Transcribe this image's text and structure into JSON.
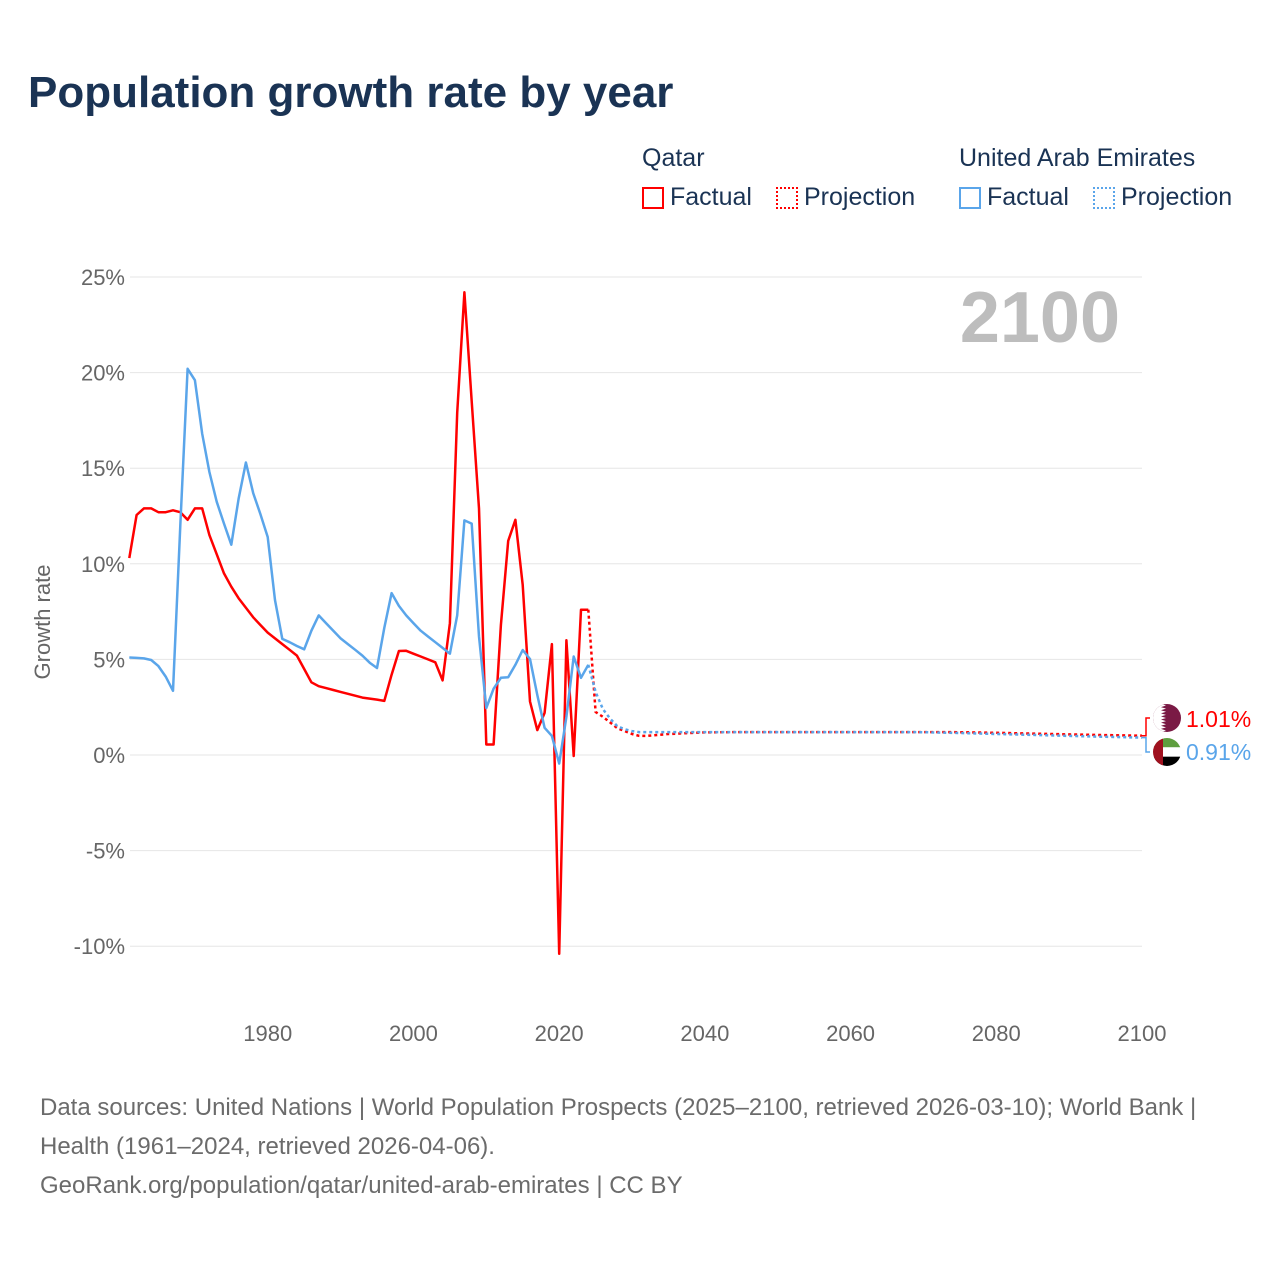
{
  "title": "Population growth rate by year",
  "legend": {
    "groups": [
      {
        "name": "Qatar",
        "factual": "Factual",
        "projection": "Projection",
        "color": "#ff0000"
      },
      {
        "name": "United Arab Emirates",
        "factual": "Factual",
        "projection": "Projection",
        "color": "#5aa5ea"
      }
    ]
  },
  "year_watermark": "2100",
  "footer": {
    "sources": "Data sources: United Nations | World Population Prospects (2025–2100, retrieved 2026-03-10); World Bank | Health (1961–2024, retrieved 2026-04-06).",
    "credit": "GeoRank.org/population/qatar/united-arab-emirates | CC BY"
  },
  "chart_data": {
    "type": "line",
    "title": "Population growth rate by year",
    "xlabel": "",
    "ylabel": "Growth rate",
    "xlim": [
      1961,
      2100
    ],
    "ylim": [
      -10.5,
      25
    ],
    "x_ticks": [
      1980,
      2000,
      2020,
      2040,
      2060,
      2080,
      2100
    ],
    "y_ticks": [
      25,
      20,
      15,
      10,
      5,
      0,
      -5,
      -10
    ],
    "y_tick_labels": [
      "25%",
      "20%",
      "15%",
      "10%",
      "5%",
      "0%",
      "-5%",
      "-10%"
    ],
    "x_tick_labels": [
      "1980",
      "2000",
      "2020",
      "2040",
      "2060",
      "2080",
      "2100"
    ],
    "grid": true,
    "legend_position": "top-right",
    "series": [
      {
        "name": "Qatar",
        "kind": "factual",
        "color": "#ff0000",
        "x": [
          1961,
          1962,
          1963,
          1964,
          1965,
          1966,
          1967,
          1968,
          1969,
          1970,
          1971,
          1972,
          1973,
          1974,
          1975,
          1976,
          1977,
          1978,
          1979,
          1980,
          1981,
          1982,
          1983,
          1984,
          1985,
          1986,
          1987,
          1988,
          1989,
          1990,
          1991,
          1992,
          1993,
          1994,
          1995,
          1996,
          1997,
          1998,
          1999,
          2000,
          2001,
          2002,
          2003,
          2004,
          2005,
          2006,
          2007,
          2008,
          2009,
          2010,
          2011,
          2012,
          2013,
          2014,
          2015,
          2016,
          2017,
          2018,
          2019,
          2020,
          2021,
          2022,
          2023,
          2024
        ],
        "y": [
          10.3,
          12.55,
          12.9,
          12.9,
          12.7,
          12.7,
          12.8,
          12.7,
          12.3,
          12.9,
          12.9,
          11.5,
          10.5,
          9.5,
          8.8,
          8.2,
          7.7,
          7.2,
          6.8,
          6.4,
          6.1,
          5.8,
          5.5,
          5.2,
          4.5,
          3.8,
          3.6,
          3.5,
          3.4,
          3.3,
          3.2,
          3.1,
          3.0,
          2.95,
          2.9,
          2.83,
          4.2,
          5.44,
          5.45,
          5.3,
          5.15,
          5.0,
          4.85,
          3.9,
          6.9,
          17.9,
          24.2,
          18.5,
          12.9,
          0.55,
          0.55,
          6.8,
          11.2,
          12.3,
          8.9,
          2.8,
          1.3,
          2.2,
          5.8,
          -10.4,
          6.0,
          -0.05,
          7.6,
          7.6
        ]
      },
      {
        "name": "Qatar",
        "kind": "projection",
        "color": "#ff0000",
        "x": [
          2024,
          2025,
          2026,
          2027,
          2028,
          2029,
          2030,
          2031,
          2032,
          2035,
          2040,
          2045,
          2050,
          2055,
          2060,
          2065,
          2070,
          2075,
          2080,
          2085,
          2090,
          2095,
          2100
        ],
        "y": [
          7.6,
          2.25,
          2.0,
          1.7,
          1.4,
          1.25,
          1.1,
          1.0,
          1.0,
          1.1,
          1.18,
          1.2,
          1.2,
          1.2,
          1.2,
          1.2,
          1.2,
          1.19,
          1.16,
          1.12,
          1.08,
          1.04,
          1.01
        ]
      },
      {
        "name": "United Arab Emirates",
        "kind": "factual",
        "color": "#5aa5ea",
        "x": [
          1961,
          1962,
          1963,
          1964,
          1965,
          1966,
          1967,
          1968,
          1969,
          1970,
          1971,
          1972,
          1973,
          1974,
          1975,
          1976,
          1977,
          1978,
          1979,
          1980,
          1981,
          1982,
          1983,
          1984,
          1985,
          1986,
          1987,
          1988,
          1989,
          1990,
          1991,
          1992,
          1993,
          1994,
          1995,
          1996,
          1997,
          1998,
          1999,
          2000,
          2001,
          2002,
          2003,
          2004,
          2005,
          2006,
          2007,
          2008,
          2009,
          2010,
          2011,
          2012,
          2013,
          2014,
          2015,
          2016,
          2017,
          2018,
          2019,
          2020,
          2021,
          2022,
          2023,
          2024
        ],
        "y": [
          5.1,
          5.08,
          5.05,
          4.97,
          4.65,
          4.1,
          3.36,
          12.0,
          20.2,
          19.6,
          16.8,
          14.8,
          13.25,
          12.1,
          11.0,
          13.4,
          15.3,
          13.7,
          12.6,
          11.4,
          8.1,
          6.07,
          5.9,
          5.7,
          5.53,
          6.5,
          7.3,
          6.9,
          6.5,
          6.1,
          5.8,
          5.5,
          5.2,
          4.83,
          4.55,
          6.65,
          8.47,
          7.8,
          7.3,
          6.9,
          6.5,
          6.2,
          5.9,
          5.6,
          5.3,
          7.3,
          12.27,
          12.1,
          6.2,
          2.46,
          3.47,
          4.04,
          4.07,
          4.72,
          5.49,
          5.02,
          3.14,
          1.42,
          1.0,
          -0.45,
          2.0,
          5.15,
          4.04,
          4.72
        ]
      },
      {
        "name": "United Arab Emirates",
        "kind": "projection",
        "color": "#5aa5ea",
        "x": [
          2024,
          2025,
          2026,
          2027,
          2028,
          2029,
          2030,
          2031,
          2032,
          2035,
          2040,
          2045,
          2050,
          2055,
          2060,
          2065,
          2070,
          2075,
          2080,
          2085,
          2090,
          2095,
          2100
        ],
        "y": [
          4.72,
          3.3,
          2.4,
          1.9,
          1.5,
          1.35,
          1.25,
          1.2,
          1.2,
          1.2,
          1.2,
          1.2,
          1.2,
          1.2,
          1.2,
          1.2,
          1.19,
          1.15,
          1.1,
          1.05,
          1.0,
          0.95,
          0.91
        ]
      }
    ],
    "end_labels": [
      {
        "name": "Qatar",
        "value": "1.01%",
        "color": "#ff0000"
      },
      {
        "name": "United Arab Emirates",
        "value": "0.91%",
        "color": "#5aa5ea"
      }
    ]
  }
}
